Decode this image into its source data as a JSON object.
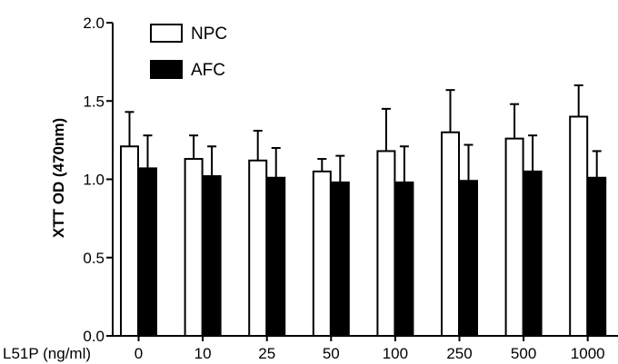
{
  "chart_data": {
    "type": "bar",
    "title": "",
    "xlabel": "",
    "x_prefix_label": "L51P (ng/ml)",
    "ylabel": "XTT OD (470nm)",
    "ylim": [
      0.0,
      2.0
    ],
    "yticks": [
      "0.0",
      "0.5",
      "1.0",
      "1.5",
      "2.0"
    ],
    "categories": [
      "0",
      "10",
      "25",
      "50",
      "100",
      "250",
      "500",
      "1000"
    ],
    "legend_position": "top-left",
    "series": [
      {
        "name": "NPC",
        "fill": "#ffffff",
        "stroke": "#000000",
        "values": [
          1.21,
          1.13,
          1.12,
          1.05,
          1.18,
          1.3,
          1.26,
          1.4
        ],
        "errors": [
          0.22,
          0.15,
          0.19,
          0.08,
          0.27,
          0.27,
          0.22,
          0.2
        ]
      },
      {
        "name": "AFC",
        "fill": "#000000",
        "stroke": "#000000",
        "values": [
          1.07,
          1.02,
          1.01,
          0.98,
          0.98,
          0.99,
          1.05,
          1.01
        ],
        "errors": [
          0.21,
          0.19,
          0.19,
          0.17,
          0.23,
          0.23,
          0.23,
          0.17
        ]
      }
    ]
  }
}
